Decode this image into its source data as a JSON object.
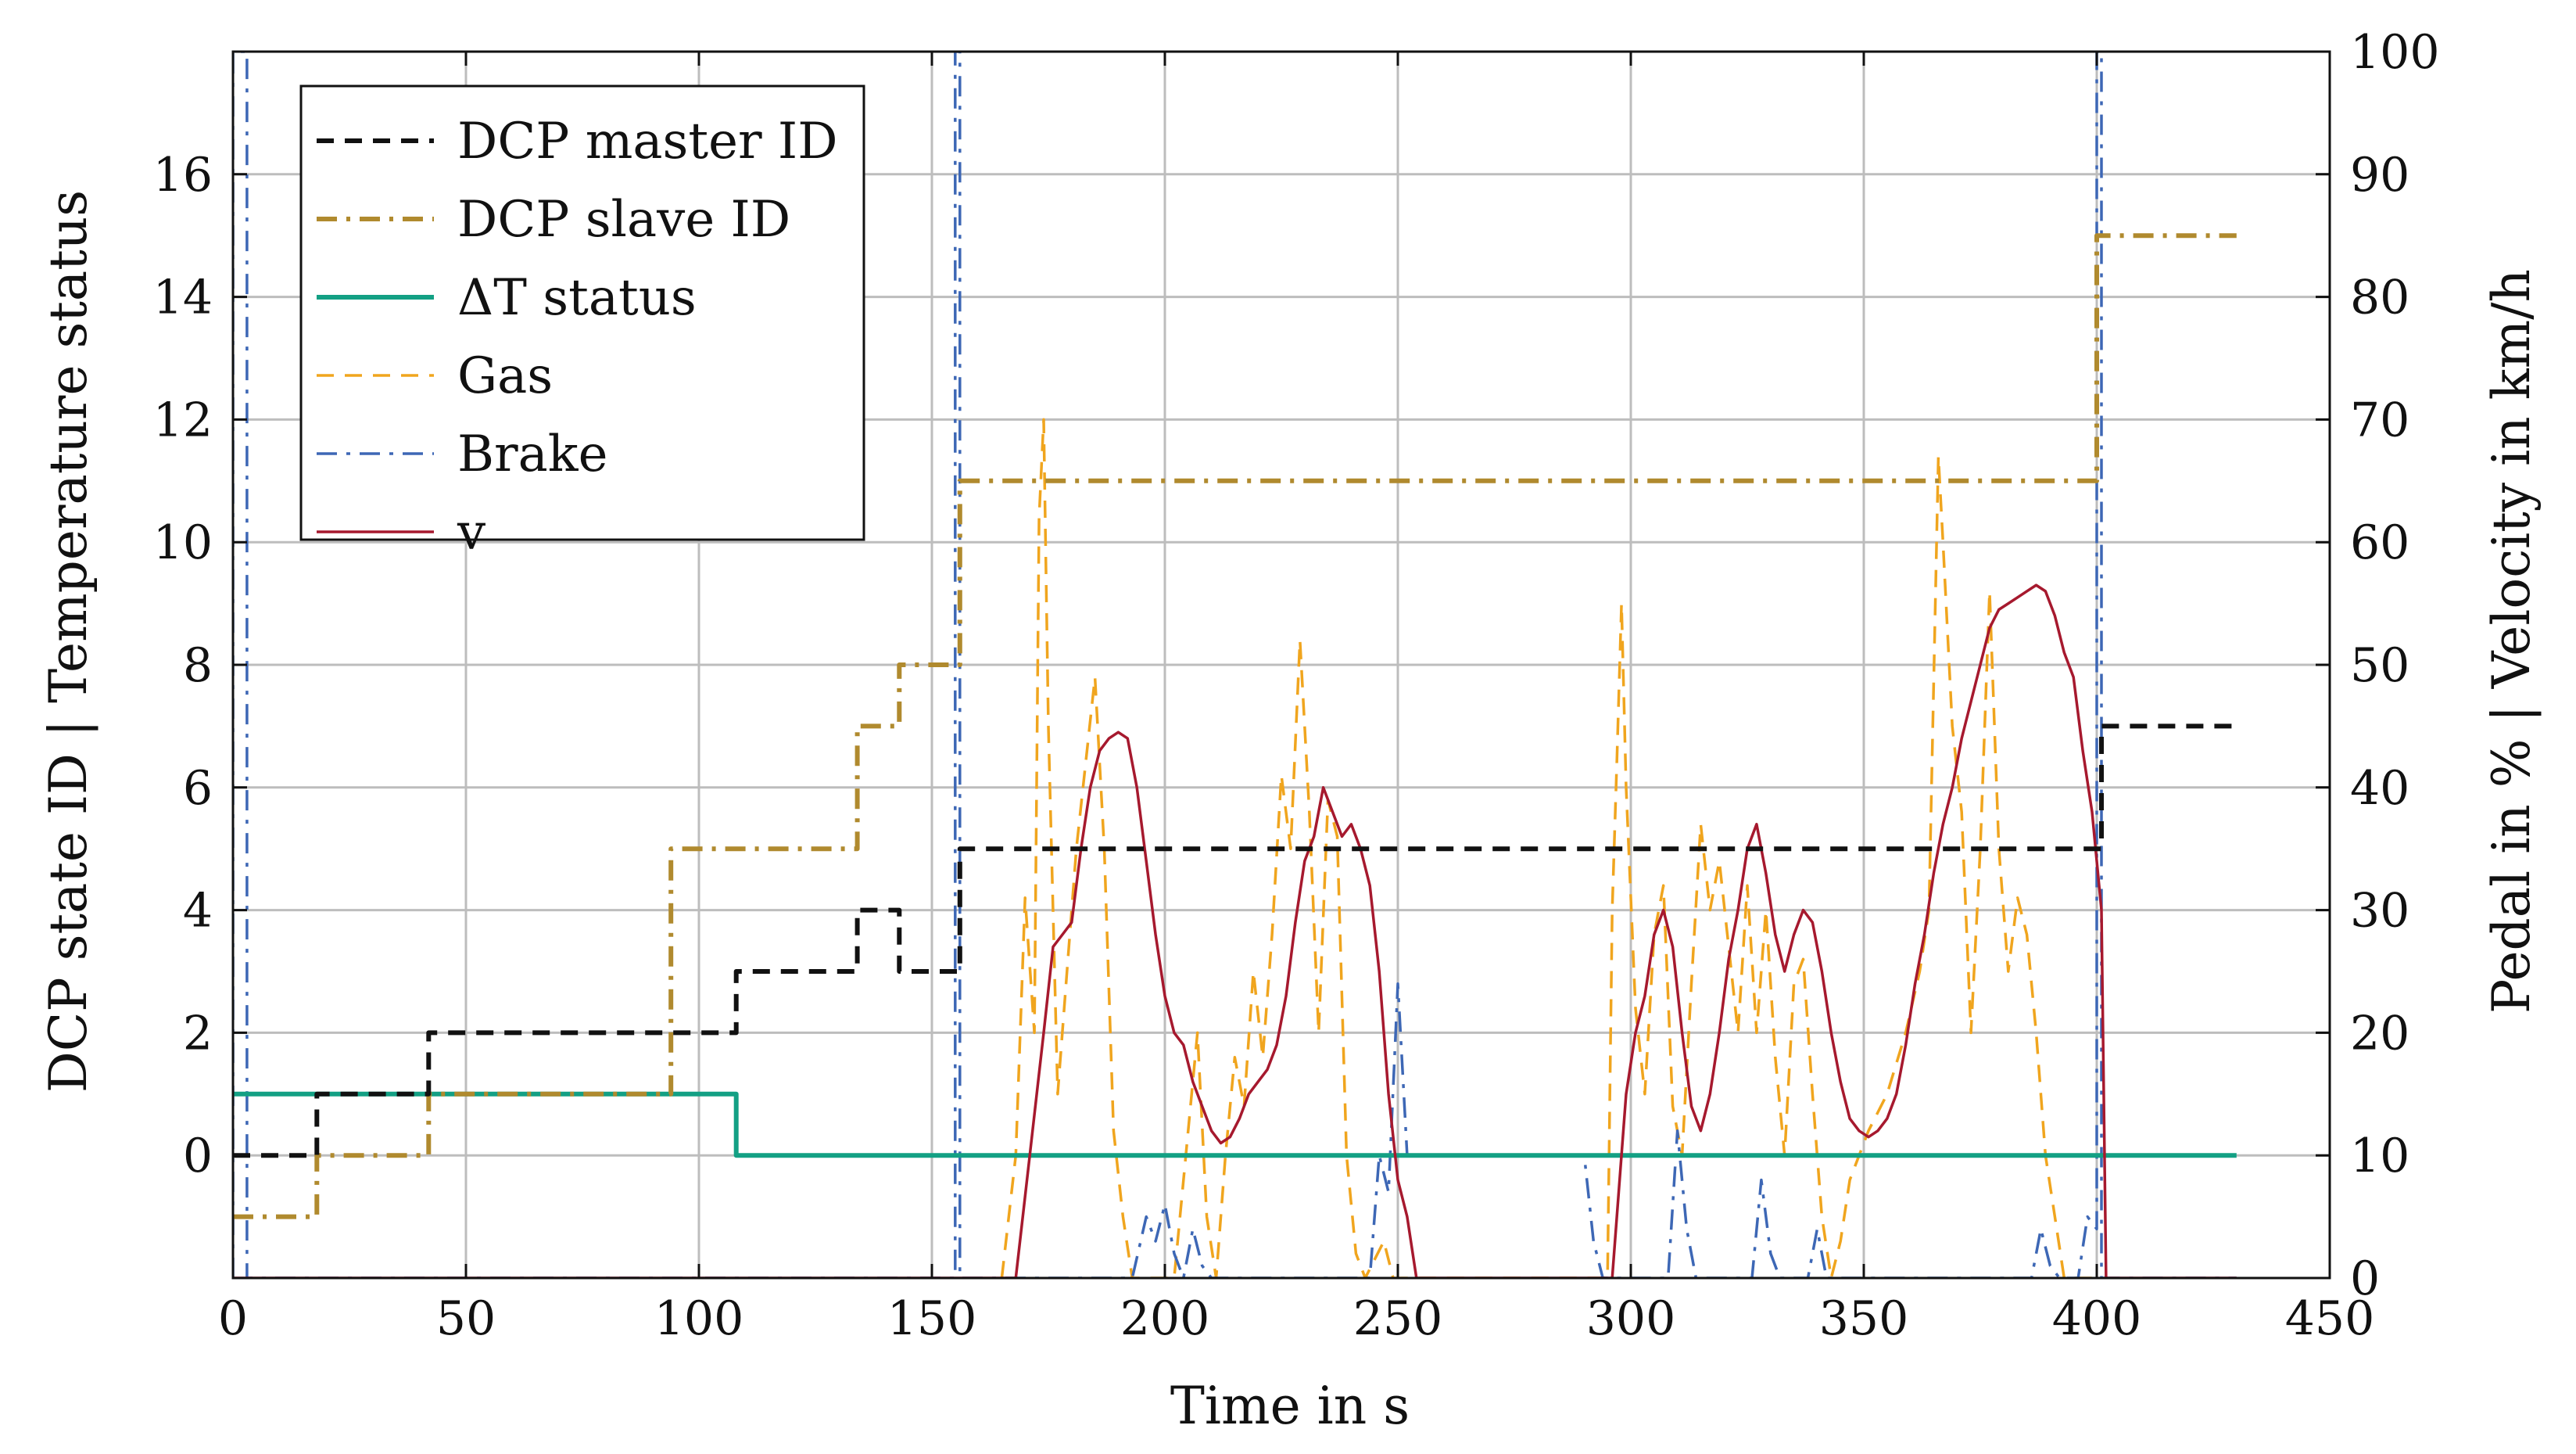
{
  "chart_data": {
    "type": "line",
    "title": "",
    "xlabel": "Time in s",
    "ylabel_left": "DCP state ID | Temperature status",
    "ylabel_right": "Pedal in % | Velocity in km/h",
    "xlim": [
      0,
      450
    ],
    "ylim_left": [
      -2,
      18
    ],
    "ylim_right": [
      0,
      100
    ],
    "grid": true,
    "legend_position": "top-left",
    "xticks": [
      "0",
      "50",
      "100",
      "150",
      "200",
      "250",
      "300",
      "350",
      "400",
      "450"
    ],
    "yticks_left": [
      "0",
      "2",
      "4",
      "6",
      "8",
      "10",
      "12",
      "14",
      "16"
    ],
    "yticks_right": [
      "0",
      "10",
      "20",
      "30",
      "40",
      "50",
      "60",
      "70",
      "80",
      "90",
      "100"
    ],
    "series": [
      {
        "name": "DCP master ID",
        "axis": "left",
        "color": "#111111",
        "style": "dashed",
        "points": [
          [
            0,
            0
          ],
          [
            18,
            0
          ],
          [
            18,
            1
          ],
          [
            42,
            1
          ],
          [
            42,
            2
          ],
          [
            108,
            2
          ],
          [
            108,
            3
          ],
          [
            134,
            3
          ],
          [
            134,
            4
          ],
          [
            143,
            4
          ],
          [
            143,
            3
          ],
          [
            156,
            3
          ],
          [
            156,
            5
          ],
          [
            401,
            5
          ],
          [
            401,
            7
          ],
          [
            430,
            7
          ]
        ]
      },
      {
        "name": "DCP slave ID",
        "axis": "left",
        "color": "#b08a2e",
        "style": "dashdot",
        "points": [
          [
            0,
            -1
          ],
          [
            18,
            -1
          ],
          [
            18,
            0
          ],
          [
            42,
            0
          ],
          [
            42,
            1
          ],
          [
            94,
            1
          ],
          [
            94,
            5
          ],
          [
            134,
            5
          ],
          [
            134,
            7
          ],
          [
            143,
            7
          ],
          [
            143,
            8
          ],
          [
            156,
            8
          ],
          [
            156,
            11
          ],
          [
            400,
            11
          ],
          [
            400,
            15
          ],
          [
            430,
            15
          ]
        ]
      },
      {
        "name": "ΔT status",
        "axis": "left",
        "color": "#13a084",
        "style": "solid",
        "points": [
          [
            0,
            1
          ],
          [
            108,
            1
          ],
          [
            108,
            0
          ],
          [
            430,
            0
          ]
        ]
      },
      {
        "name": "Gas",
        "axis": "right",
        "color": "#f0a51e",
        "style": "dashed",
        "points": [
          [
            165,
            0
          ],
          [
            168,
            10
          ],
          [
            170,
            31
          ],
          [
            172,
            20
          ],
          [
            173,
            62
          ],
          [
            174,
            70
          ],
          [
            175,
            45
          ],
          [
            177,
            15
          ],
          [
            179,
            25
          ],
          [
            181,
            35
          ],
          [
            183,
            42
          ],
          [
            185,
            49
          ],
          [
            187,
            35
          ],
          [
            189,
            12
          ],
          [
            191,
            5
          ],
          [
            193,
            0
          ],
          [
            202,
            0
          ],
          [
            205,
            12
          ],
          [
            207,
            20
          ],
          [
            209,
            5
          ],
          [
            211,
            0
          ],
          [
            213,
            10
          ],
          [
            215,
            18
          ],
          [
            217,
            14
          ],
          [
            219,
            25
          ],
          [
            221,
            18
          ],
          [
            223,
            28
          ],
          [
            225,
            41
          ],
          [
            227,
            35
          ],
          [
            229,
            52
          ],
          [
            231,
            38
          ],
          [
            233,
            20
          ],
          [
            235,
            39
          ],
          [
            237,
            36
          ],
          [
            239,
            10
          ],
          [
            241,
            2
          ],
          [
            243,
            0
          ],
          [
            247,
            3
          ],
          [
            249,
            0
          ],
          [
            295,
            0
          ],
          [
            296,
            30
          ],
          [
            297,
            42
          ],
          [
            298,
            55
          ],
          [
            299,
            40
          ],
          [
            301,
            22
          ],
          [
            303,
            15
          ],
          [
            305,
            28
          ],
          [
            307,
            32
          ],
          [
            309,
            14
          ],
          [
            311,
            10
          ],
          [
            313,
            24
          ],
          [
            315,
            37
          ],
          [
            317,
            30
          ],
          [
            319,
            34
          ],
          [
            321,
            27
          ],
          [
            323,
            20
          ],
          [
            325,
            32
          ],
          [
            327,
            20
          ],
          [
            329,
            30
          ],
          [
            331,
            18
          ],
          [
            333,
            10
          ],
          [
            335,
            24
          ],
          [
            337,
            26
          ],
          [
            339,
            15
          ],
          [
            341,
            5
          ],
          [
            343,
            0
          ],
          [
            345,
            3
          ],
          [
            347,
            8
          ],
          [
            351,
            12
          ],
          [
            355,
            15
          ],
          [
            359,
            20
          ],
          [
            362,
            25
          ],
          [
            364,
            30
          ],
          [
            366,
            67
          ],
          [
            367,
            60
          ],
          [
            369,
            45
          ],
          [
            371,
            38
          ],
          [
            373,
            20
          ],
          [
            375,
            35
          ],
          [
            377,
            56
          ],
          [
            379,
            35
          ],
          [
            381,
            25
          ],
          [
            383,
            31
          ],
          [
            385,
            28
          ],
          [
            387,
            20
          ],
          [
            389,
            10
          ],
          [
            391,
            5
          ],
          [
            393,
            0
          ],
          [
            400,
            0
          ]
        ]
      },
      {
        "name": "Brake",
        "axis": "right",
        "color": "#3d67b5",
        "style": "dashdot",
        "points": [
          [
            0,
            0
          ],
          [
            0,
            100
          ],
          [
            3,
            100
          ],
          [
            3,
            0
          ],
          [
            155,
            0
          ],
          [
            155,
            100
          ],
          [
            156,
            100
          ],
          [
            156,
            0
          ],
          [
            193,
            0
          ],
          [
            196,
            5
          ],
          [
            198,
            3
          ],
          [
            200,
            6
          ],
          [
            202,
            2
          ],
          [
            204,
            0
          ],
          [
            206,
            4
          ],
          [
            208,
            1
          ],
          [
            210,
            0
          ],
          [
            244,
            0
          ],
          [
            246,
            10
          ],
          [
            248,
            7
          ],
          [
            250,
            24
          ],
          [
            252,
            10
          ],
          [
            254,
            10
          ],
          [
            256,
            10
          ],
          [
            290,
            10
          ],
          [
            292,
            3
          ],
          [
            294,
            0
          ],
          [
            308,
            0
          ],
          [
            310,
            12
          ],
          [
            312,
            4
          ],
          [
            314,
            0
          ],
          [
            326,
            0
          ],
          [
            328,
            8
          ],
          [
            330,
            2
          ],
          [
            332,
            0
          ],
          [
            338,
            0
          ],
          [
            340,
            4
          ],
          [
            342,
            0
          ],
          [
            386,
            0
          ],
          [
            388,
            4
          ],
          [
            390,
            1
          ],
          [
            392,
            0
          ],
          [
            396,
            0
          ],
          [
            398,
            5
          ],
          [
            400,
            4
          ],
          [
            400,
            100
          ],
          [
            401,
            100
          ],
          [
            401,
            0
          ],
          [
            430,
            0
          ]
        ]
      },
      {
        "name": "v",
        "axis": "right",
        "color": "#a6192e",
        "style": "solid",
        "points": [
          [
            0,
            0
          ],
          [
            168,
            0
          ],
          [
            171,
            10
          ],
          [
            174,
            20
          ],
          [
            176,
            27
          ],
          [
            178,
            28
          ],
          [
            180,
            29
          ],
          [
            182,
            35
          ],
          [
            184,
            40
          ],
          [
            186,
            43
          ],
          [
            188,
            44
          ],
          [
            190,
            44.5
          ],
          [
            192,
            44
          ],
          [
            194,
            40
          ],
          [
            196,
            34
          ],
          [
            198,
            28
          ],
          [
            200,
            23
          ],
          [
            202,
            20
          ],
          [
            204,
            19
          ],
          [
            206,
            16
          ],
          [
            208,
            14
          ],
          [
            210,
            12
          ],
          [
            212,
            11
          ],
          [
            214,
            11.5
          ],
          [
            216,
            13
          ],
          [
            218,
            15
          ],
          [
            220,
            16
          ],
          [
            222,
            17
          ],
          [
            224,
            19
          ],
          [
            226,
            23
          ],
          [
            228,
            29
          ],
          [
            230,
            34
          ],
          [
            232,
            36
          ],
          [
            234,
            40
          ],
          [
            236,
            38
          ],
          [
            238,
            36
          ],
          [
            240,
            37
          ],
          [
            242,
            35
          ],
          [
            244,
            32
          ],
          [
            246,
            25
          ],
          [
            248,
            15
          ],
          [
            250,
            8
          ],
          [
            252,
            5
          ],
          [
            254,
            0
          ],
          [
            296,
            0
          ],
          [
            299,
            15
          ],
          [
            301,
            20
          ],
          [
            303,
            23
          ],
          [
            305,
            28
          ],
          [
            307,
            30
          ],
          [
            309,
            27
          ],
          [
            311,
            20
          ],
          [
            313,
            14
          ],
          [
            315,
            12
          ],
          [
            317,
            15
          ],
          [
            319,
            20
          ],
          [
            321,
            26
          ],
          [
            323,
            30
          ],
          [
            325,
            35
          ],
          [
            327,
            37
          ],
          [
            329,
            33
          ],
          [
            331,
            28
          ],
          [
            333,
            25
          ],
          [
            335,
            28
          ],
          [
            337,
            30
          ],
          [
            339,
            29
          ],
          [
            341,
            25
          ],
          [
            343,
            20
          ],
          [
            345,
            16
          ],
          [
            347,
            13
          ],
          [
            349,
            12
          ],
          [
            351,
            11.5
          ],
          [
            353,
            12
          ],
          [
            355,
            13
          ],
          [
            357,
            15
          ],
          [
            359,
            19
          ],
          [
            361,
            24
          ],
          [
            363,
            28
          ],
          [
            365,
            33
          ],
          [
            367,
            37
          ],
          [
            369,
            40
          ],
          [
            371,
            44
          ],
          [
            373,
            47
          ],
          [
            375,
            50
          ],
          [
            377,
            53
          ],
          [
            379,
            54.5
          ],
          [
            381,
            55
          ],
          [
            383,
            55.5
          ],
          [
            385,
            56
          ],
          [
            387,
            56.5
          ],
          [
            389,
            56
          ],
          [
            391,
            54
          ],
          [
            393,
            51
          ],
          [
            395,
            49
          ],
          [
            397,
            43
          ],
          [
            399,
            38
          ],
          [
            401,
            30
          ],
          [
            402,
            0
          ],
          [
            430,
            0
          ]
        ]
      }
    ]
  }
}
